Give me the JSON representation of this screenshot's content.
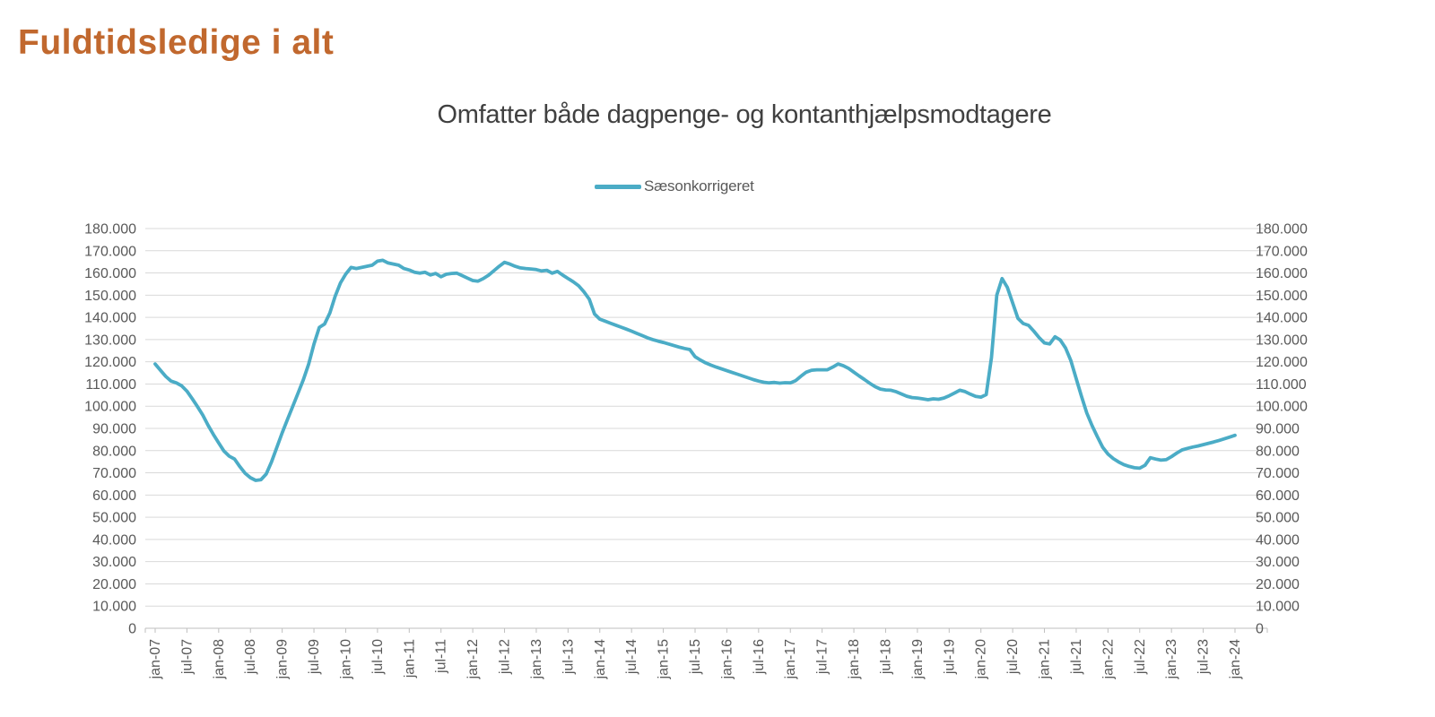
{
  "header": {
    "title": "Fuldtidsledige i alt",
    "title_color": "#C1682E"
  },
  "chart": {
    "subtitle": "Omfatter både dagpenge- og kontanthjælpsmodtagere",
    "legend": {
      "label": "Sæsonkorrigeret",
      "swatch_color": "#4BACC6"
    }
  },
  "colors": {
    "series_line": "#4BACC6",
    "gridline": "#D9D9D9",
    "axis_line": "#BFBFBF",
    "axis_text": "#595959",
    "subtitle_text": "#404040"
  },
  "chart_data": {
    "type": "line",
    "title": "Omfatter både dagpenge- og kontanthjælpsmodtagere",
    "x_interval": "monthly",
    "x_start": "jan-07",
    "x_end": "jan-24",
    "ylim": [
      0,
      180000
    ],
    "y_tick_step": 10000,
    "grid": "horizontal",
    "legend_position": "top-center",
    "x_tick_labels": [
      "jan-07",
      "jul-07",
      "jan-08",
      "jul-08",
      "jan-09",
      "jul-09",
      "jan-10",
      "jul-10",
      "jan-11",
      "jul-11",
      "jan-12",
      "jul-12",
      "jan-13",
      "jul-13",
      "jan-14",
      "jul-14",
      "jan-15",
      "jul-15",
      "jan-16",
      "jul-16",
      "jan-17",
      "jul-17",
      "jan-18",
      "jul-18",
      "jan-19",
      "jul-19",
      "jan-20",
      "jul-20",
      "jan-21",
      "jul-21",
      "jan-22",
      "jul-22",
      "jan-23",
      "jul-23",
      "jan-24"
    ],
    "y_tick_labels": [
      "0",
      "10.000",
      "20.000",
      "30.000",
      "40.000",
      "50.000",
      "60.000",
      "70.000",
      "80.000",
      "90.000",
      "100.000",
      "110.000",
      "120.000",
      "130.000",
      "140.000",
      "150.000",
      "160.000",
      "170.000",
      "180.000"
    ],
    "series": [
      {
        "name": "Sæsonkorrigeret",
        "color": "#4BACC6",
        "values": [
          119000,
          116200,
          113400,
          111300,
          110500,
          109200,
          106800,
          103400,
          99800,
          96000,
          91400,
          87300,
          83500,
          79800,
          77500,
          76200,
          72800,
          69800,
          67800,
          66600,
          66900,
          69500,
          75000,
          81500,
          88000,
          94000,
          100000,
          106000,
          112000,
          119000,
          128000,
          135500,
          137000,
          142000,
          149500,
          155500,
          159500,
          162500,
          162000,
          162500,
          163000,
          163500,
          165300,
          165700,
          164500,
          164000,
          163500,
          162000,
          161300,
          160300,
          159900,
          160300,
          159100,
          159800,
          158300,
          159400,
          159800,
          159900,
          158800,
          157700,
          156600,
          156300,
          157500,
          159000,
          161000,
          163000,
          164800,
          164000,
          163000,
          162300,
          162000,
          161800,
          161500,
          160900,
          161200,
          159900,
          160700,
          159000,
          157500,
          156000,
          154200,
          151500,
          148200,
          141500,
          139200,
          138300,
          137400,
          136500,
          135600,
          134700,
          133800,
          132800,
          131800,
          130800,
          130000,
          129300,
          128700,
          128000,
          127300,
          126600,
          126000,
          125500,
          122300,
          120800,
          119500,
          118500,
          117600,
          116800,
          116000,
          115200,
          114400,
          113600,
          112800,
          112000,
          111300,
          110800,
          110500,
          110700,
          110400,
          110600,
          110500,
          111500,
          113500,
          115300,
          116200,
          116400,
          116400,
          116400,
          117600,
          119000,
          118200,
          117000,
          115300,
          113600,
          112000,
          110300,
          108800,
          107700,
          107300,
          107200,
          106500,
          105500,
          104500,
          103900,
          103700,
          103300,
          102900,
          103300,
          103100,
          103700,
          104700,
          105900,
          107200,
          106600,
          105400,
          104400,
          104100,
          105200,
          122000,
          150000,
          157500,
          153500,
          146500,
          139500,
          137200,
          136400,
          133800,
          130900,
          128500,
          128000,
          131300,
          129800,
          126200,
          120500,
          112500,
          104500,
          97000,
          91300,
          86300,
          81500,
          78400,
          76400,
          74900,
          73700,
          72900,
          72300,
          72100,
          73400,
          76800,
          76200,
          75700,
          75900,
          77300,
          78900,
          80300,
          81000,
          81600,
          82100,
          82700,
          83300,
          83900,
          84600,
          85300,
          86100,
          86900
        ]
      }
    ]
  }
}
